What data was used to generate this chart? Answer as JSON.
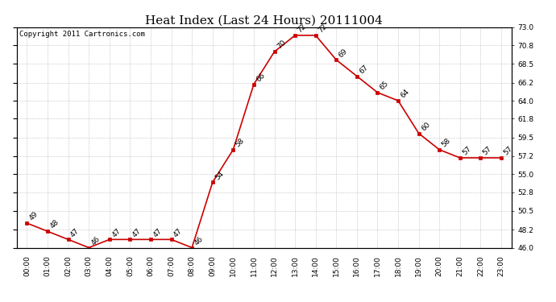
{
  "title": "Heat Index (Last 24 Hours) 20111004",
  "copyright_text": "Copyright 2011 Cartronics.com",
  "hours": [
    "00:00",
    "01:00",
    "02:00",
    "03:00",
    "04:00",
    "05:00",
    "06:00",
    "07:00",
    "08:00",
    "09:00",
    "10:00",
    "11:00",
    "12:00",
    "13:00",
    "14:00",
    "15:00",
    "16:00",
    "17:00",
    "18:00",
    "19:00",
    "20:00",
    "21:00",
    "22:00",
    "23:00"
  ],
  "values": [
    49,
    48,
    47,
    46,
    47,
    47,
    47,
    47,
    46,
    54,
    58,
    66,
    70,
    72,
    72,
    69,
    67,
    65,
    64,
    60,
    58,
    57,
    57,
    57
  ],
  "ylim": [
    46.0,
    73.0
  ],
  "yticks": [
    46.0,
    48.2,
    50.5,
    52.8,
    55.0,
    57.2,
    59.5,
    61.8,
    64.0,
    66.2,
    68.5,
    70.8,
    73.0
  ],
  "ytick_labels": [
    "46.0",
    "48.2",
    "50.5",
    "52.8",
    "55.0",
    "57.2",
    "59.5",
    "61.8",
    "64.0",
    "66.2",
    "68.5",
    "70.8",
    "73.0"
  ],
  "line_color": "#cc0000",
  "marker_color": "#cc0000",
  "bg_color": "#ffffff",
  "grid_color": "#aaaaaa",
  "title_fontsize": 11,
  "label_fontsize": 6.5,
  "copyright_fontsize": 6.5,
  "tick_fontsize": 6.5
}
